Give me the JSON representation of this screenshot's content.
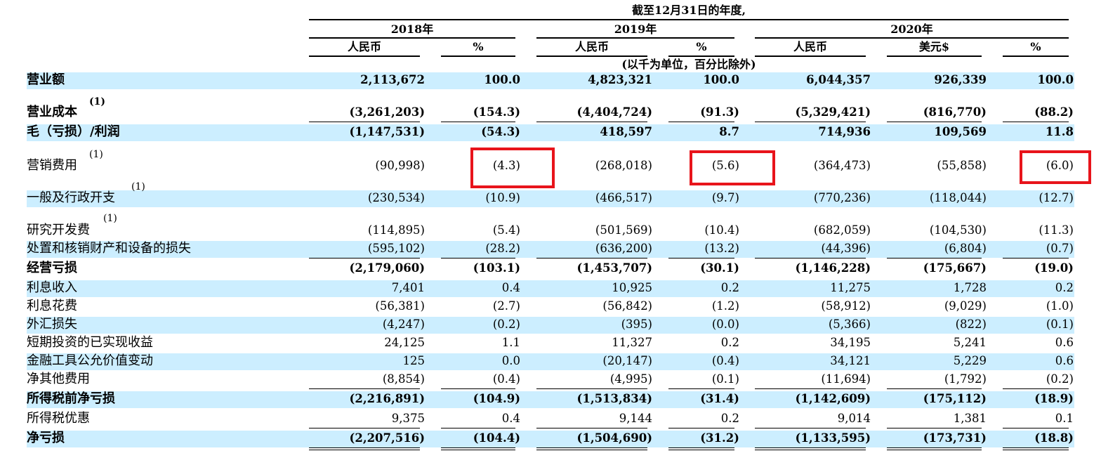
{
  "header": {
    "period": "截至12月31日的年度,",
    "years": [
      "2018年",
      "2019年",
      "2020年"
    ],
    "columns": [
      "人民币",
      "%",
      "人民币",
      "%",
      "人民币",
      "美元$",
      "%"
    ],
    "unit_note": "(以千为单位，百分比除外)"
  },
  "footnote_marker": "(1)",
  "rows": [
    {
      "label": "营业额",
      "bold": true,
      "values": [
        "2,113,672",
        "100.0",
        "4,823,321",
        "100.0",
        "6,044,357",
        "926,339",
        "100.0"
      ]
    },
    {
      "label": "营业成本",
      "bold": true,
      "footnote": true,
      "values": [
        "(3,261,203)",
        "(154.3)",
        "(4,404,724)",
        "(91.3)",
        "(5,329,421)",
        "(816,770)",
        "(88.2)"
      ]
    },
    {
      "label": "毛（亏损）/利润",
      "bold": true,
      "values": [
        "(1,147,531)",
        "(54.3)",
        "418,597",
        "8.7",
        "714,936",
        "109,569",
        "11.8"
      ]
    },
    {
      "label": "营销费用",
      "bold": false,
      "footnote": true,
      "values": [
        "(90,998)",
        "(4.3)",
        "(268,018)",
        "(5.6)",
        "(364,473)",
        "(55,858)",
        "(6.0)"
      ]
    },
    {
      "label": "一般及行政开支",
      "bold": false,
      "footnote": true,
      "values": [
        "(230,534)",
        "(10.9)",
        "(466,517)",
        "(9.7)",
        "(770,236)",
        "(118,044)",
        "(12.7)"
      ]
    },
    {
      "label": "研究开发费",
      "bold": false,
      "footnote": true,
      "values": [
        "(114,895)",
        "(5.4)",
        "(501,569)",
        "(10.4)",
        "(682,059)",
        "(104,530)",
        "(11.3)"
      ]
    },
    {
      "label": "处置和核销财产和设备的损失",
      "bold": false,
      "values": [
        "(595,102)",
        "(28.2)",
        "(636,200)",
        "(13.2)",
        "(44,396)",
        "(6,804)",
        "(0.7)"
      ]
    },
    {
      "label": "经营亏损",
      "bold": true,
      "values": [
        "(2,179,060)",
        "(103.1)",
        "(1,453,707)",
        "(30.1)",
        "(1,146,228)",
        "(175,667)",
        "(19.0)"
      ]
    },
    {
      "label": "利息收入",
      "bold": false,
      "values": [
        "7,401",
        "0.4",
        "10,925",
        "0.2",
        "11,275",
        "1,728",
        "0.2"
      ]
    },
    {
      "label": "利息花费",
      "bold": false,
      "values": [
        "(56,381)",
        "(2.7)",
        "(56,842)",
        "(1.2)",
        "(58,912)",
        "(9,029)",
        "(1.0)"
      ]
    },
    {
      "label": "外汇损失",
      "bold": false,
      "values": [
        "(4,247)",
        "(0.2)",
        "(395)",
        "(0.0)",
        "(5,366)",
        "(822)",
        "(0.1)"
      ]
    },
    {
      "label": "短期投资的已实现收益",
      "bold": false,
      "values": [
        "24,125",
        "1.1",
        "11,327",
        "0.2",
        "34,195",
        "5,241",
        "0.6"
      ]
    },
    {
      "label": "金融工具公允价值变动",
      "bold": false,
      "values": [
        "125",
        "0.0",
        "(20,147)",
        "(0.4)",
        "34,121",
        "5,229",
        "0.6"
      ]
    },
    {
      "label": "净其他费用",
      "bold": false,
      "values": [
        "(8,854)",
        "(0.4)",
        "(4,995)",
        "(0.1)",
        "(11,694)",
        "(1,792)",
        "(0.2)"
      ]
    },
    {
      "label": "所得税前净亏损",
      "bold": true,
      "values": [
        "(2,216,891)",
        "(104.9)",
        "(1,513,834)",
        "(31.4)",
        "(1,142,609)",
        "(175,112)",
        "(18.9)"
      ]
    },
    {
      "label": "所得税优惠",
      "bold": false,
      "values": [
        "9,375",
        "0.4",
        "9,144",
        "0.2",
        "9,014",
        "1,381",
        "0.1"
      ]
    },
    {
      "label": "净亏损",
      "bold": true,
      "values": [
        "(2,207,516)",
        "(104.4)",
        "(1,504,690)",
        "(31.2)",
        "(1,133,595)",
        "(173,731)",
        "(18.8)"
      ]
    }
  ],
  "highlight_color": "#e8141b",
  "band_color": "#cceeff"
}
